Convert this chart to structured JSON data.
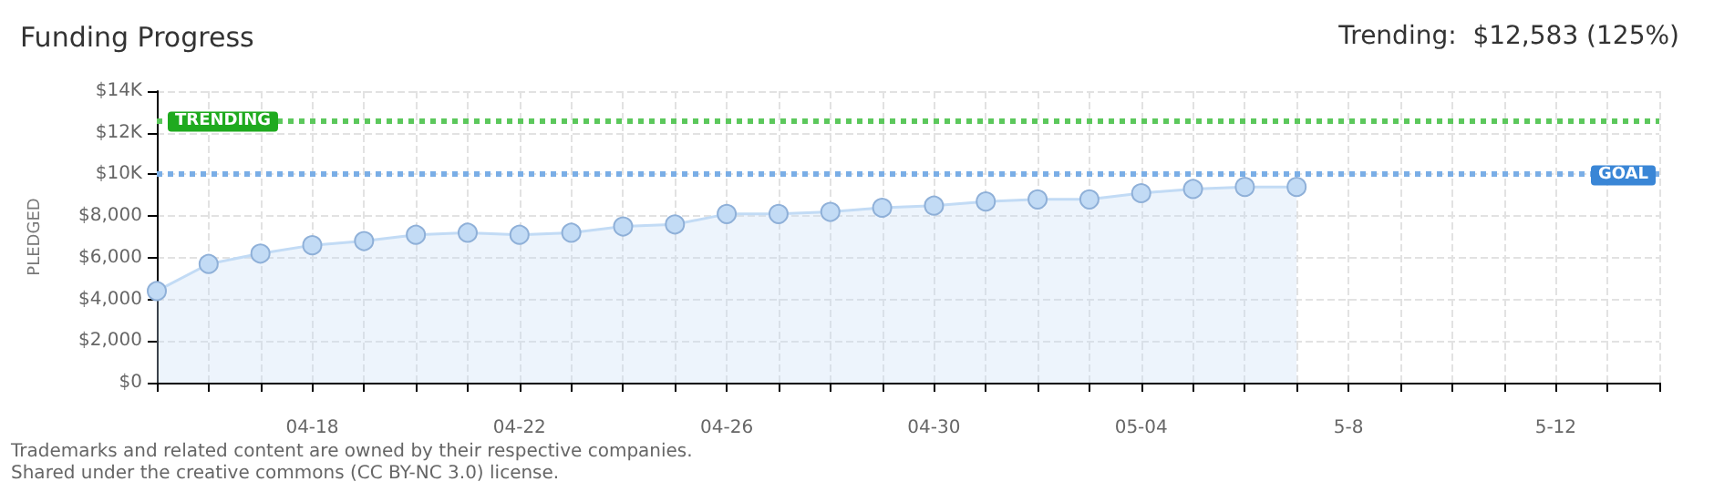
{
  "chart_data": {
    "type": "area",
    "title": "Funding Progress",
    "subtitle": "Trending:  $12,583 (125%)",
    "ylabel": "PLEDGED",
    "categories": [
      null,
      null,
      null,
      "04-18",
      null,
      null,
      null,
      "04-22",
      null,
      null,
      null,
      "04-26",
      null,
      null,
      null,
      "04-30",
      null,
      null,
      null,
      "05-04",
      null,
      null,
      null,
      "5-8",
      null,
      null,
      null,
      "5-12",
      null,
      null
    ],
    "series": [
      {
        "color": "#c2dbf5",
        "values": [
          4400,
          5700,
          6200,
          6600,
          6800,
          7100,
          7200,
          7100,
          7200,
          7500,
          7600,
          8100,
          8100,
          8200,
          8400,
          8500,
          8700,
          8800,
          8800,
          9100,
          9300,
          9400,
          9400,
          null,
          null,
          null,
          null,
          null,
          null,
          null
        ]
      }
    ],
    "ylim": [
      0,
      14000
    ],
    "yticks": [
      {
        "value": 0,
        "label": "$0"
      },
      {
        "value": 2000,
        "label": "$2,000"
      },
      {
        "value": 4000,
        "label": "$4,000"
      },
      {
        "value": 6000,
        "label": "$6,000"
      },
      {
        "value": 8000,
        "label": "$8,000"
      },
      {
        "value": 10000,
        "label": "$10K"
      },
      {
        "value": 12000,
        "label": "$12K"
      },
      {
        "value": 14000,
        "label": "$14K"
      }
    ],
    "ref_lines": [
      {
        "axis": "y",
        "value": 12583,
        "label": "TRENDING",
        "color": "#5cc85c",
        "line_style": "dotted"
      },
      {
        "axis": "y",
        "value": 10000,
        "label": "GOAL",
        "color": "#7aaee6",
        "line_style": "dotted"
      }
    ],
    "annotations": [
      "Trademarks and related content are owned by their respective companies.",
      "Shared under the creative commons (CC BY-NC 3.0) license."
    ],
    "grid": true,
    "marker": "circle",
    "line_style": "solid"
  }
}
